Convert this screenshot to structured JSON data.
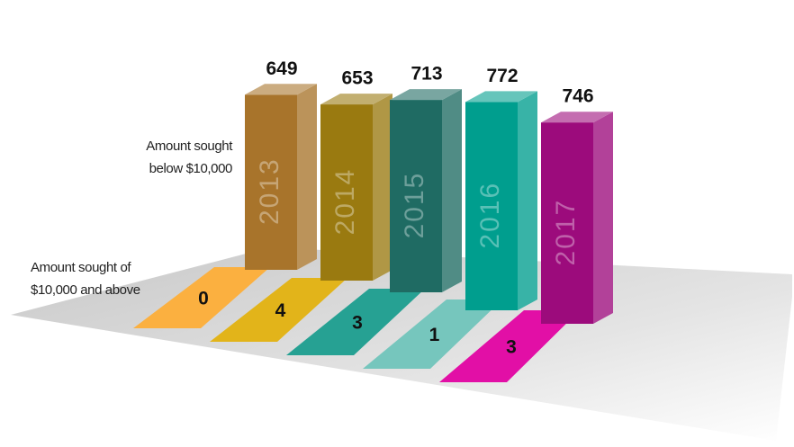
{
  "chart_data": {
    "type": "bar3d",
    "categories": [
      "2013",
      "2014",
      "2015",
      "2016",
      "2017"
    ],
    "series": [
      {
        "name": "Amount sought below $10,000",
        "values": [
          649,
          653,
          713,
          772,
          746
        ],
        "colors": [
          "#a8742b",
          "#9a7a10",
          "#1f6b63",
          "#009e8e",
          "#9c0b7c"
        ]
      },
      {
        "name": "Amount sought of $10,000 and above",
        "values": [
          0,
          4,
          3,
          1,
          3
        ],
        "colors": [
          "#fbb040",
          "#e2b41a",
          "#26a193",
          "#76c6bd",
          "#e20fa6"
        ]
      }
    ]
  }
}
